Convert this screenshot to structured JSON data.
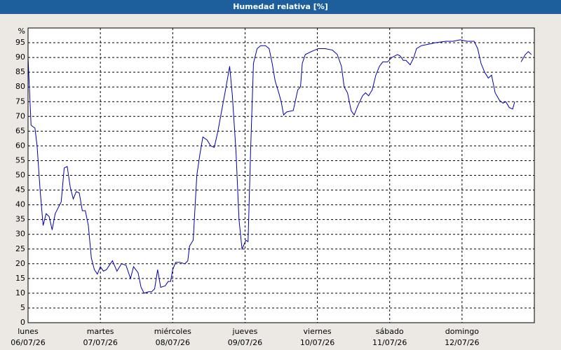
{
  "chart_data": {
    "type": "line",
    "title": "Humedad relativa [%]",
    "y_label": "%",
    "x": [
      0,
      1,
      2.3,
      3,
      4,
      5,
      6,
      7,
      8,
      9,
      10,
      11,
      12,
      13,
      14,
      15,
      16,
      17,
      18,
      19,
      20,
      21,
      22,
      23,
      24,
      25,
      26,
      28,
      29.5,
      31,
      32.5,
      34,
      35,
      36.5,
      37.5,
      38.5,
      40,
      41,
      42,
      43,
      44,
      45.5,
      46.5,
      47.3,
      48,
      49,
      50.3,
      52,
      53,
      53.6,
      54.8,
      56,
      57,
      58,
      59.4,
      60.6,
      61.8,
      63,
      63.9,
      64.8,
      65.7,
      66.9,
      67.8,
      69,
      70,
      71,
      72.3,
      73,
      73.9,
      74.8,
      76,
      77.2,
      78.8,
      80,
      81,
      82,
      83.2,
      84,
      84.8,
      85.8,
      88,
      89.5,
      90.4,
      91,
      92,
      94,
      96.3,
      98.6,
      101,
      102.6,
      104,
      104.9,
      106,
      107.2,
      108.2,
      109.6,
      111,
      112,
      113,
      114.2,
      115.4,
      116.6,
      117.7,
      119.3,
      120.7,
      122.6,
      123.5,
      124.5,
      125.4,
      126.8,
      128,
      128.9,
      130.5,
      132.9,
      135.2,
      138.7,
      141,
      143.4,
      145.7,
      148,
      149.2,
      150.3,
      151.5,
      152.7,
      153.8,
      155,
      156.4,
      157.6,
      158.5,
      159.7,
      160.8,
      161.5,
      162.5,
      163.6,
      165,
      166,
      167
    ],
    "values": [
      90,
      67,
      66,
      60,
      45,
      33,
      37,
      36,
      31.5,
      37,
      39,
      41,
      52.5,
      53,
      46,
      42,
      44.5,
      44,
      38,
      38,
      33,
      22,
      18,
      16.5,
      19,
      17.5,
      18,
      21,
      17.5,
      20,
      19.5,
      15,
      19,
      17,
      12,
      10,
      10.5,
      10.5,
      11.5,
      18,
      12,
      12.5,
      14,
      14,
      18,
      20.5,
      20.5,
      20,
      21,
      26,
      28,
      50,
      57,
      63,
      62,
      60,
      59.5,
      65,
      70,
      75,
      80,
      87,
      77,
      58,
      35,
      25,
      28,
      27.5,
      60,
      88,
      93,
      94,
      94,
      93,
      88,
      82,
      78,
      75,
      70.5,
      71.5,
      72,
      79,
      80,
      88,
      91,
      92,
      93,
      93,
      92.5,
      91,
      87,
      80,
      78,
      72,
      70.5,
      74,
      77,
      78,
      77,
      79,
      84,
      87,
      88.5,
      88.5,
      90,
      91,
      90.5,
      89,
      89,
      87.5,
      90,
      93,
      94,
      94.5,
      95,
      95.5,
      95.5,
      96,
      95.5,
      95.5,
      93,
      88,
      85,
      83,
      84,
      78,
      75.5,
      74.5,
      75,
      73,
      72.5,
      75,
      null,
      88.5,
      91,
      92,
      91
    ],
    "color": "#0000aa",
    "xlim": [
      0,
      168
    ],
    "xticks": [
      {
        "value": 0,
        "label": "lunes"
      },
      {
        "value": 24,
        "label": "martes"
      },
      {
        "value": 48,
        "label": "miércoles"
      },
      {
        "value": 72,
        "label": "jueves"
      },
      {
        "value": 96,
        "label": "viernes"
      },
      {
        "value": 120,
        "label": "sábado"
      },
      {
        "value": 144,
        "label": "domingo"
      }
    ],
    "xtick_dates": [
      "06/07/26",
      "07/07/26",
      "08/07/26",
      "09/07/26",
      "10/07/26",
      "11/07/26",
      "12/07/26"
    ],
    "ylim": [
      0,
      100
    ],
    "yticks": [
      0,
      5,
      10,
      15,
      20,
      25,
      30,
      35,
      40,
      45,
      50,
      55,
      60,
      65,
      70,
      75,
      80,
      85,
      90,
      95
    ],
    "grid": true
  }
}
